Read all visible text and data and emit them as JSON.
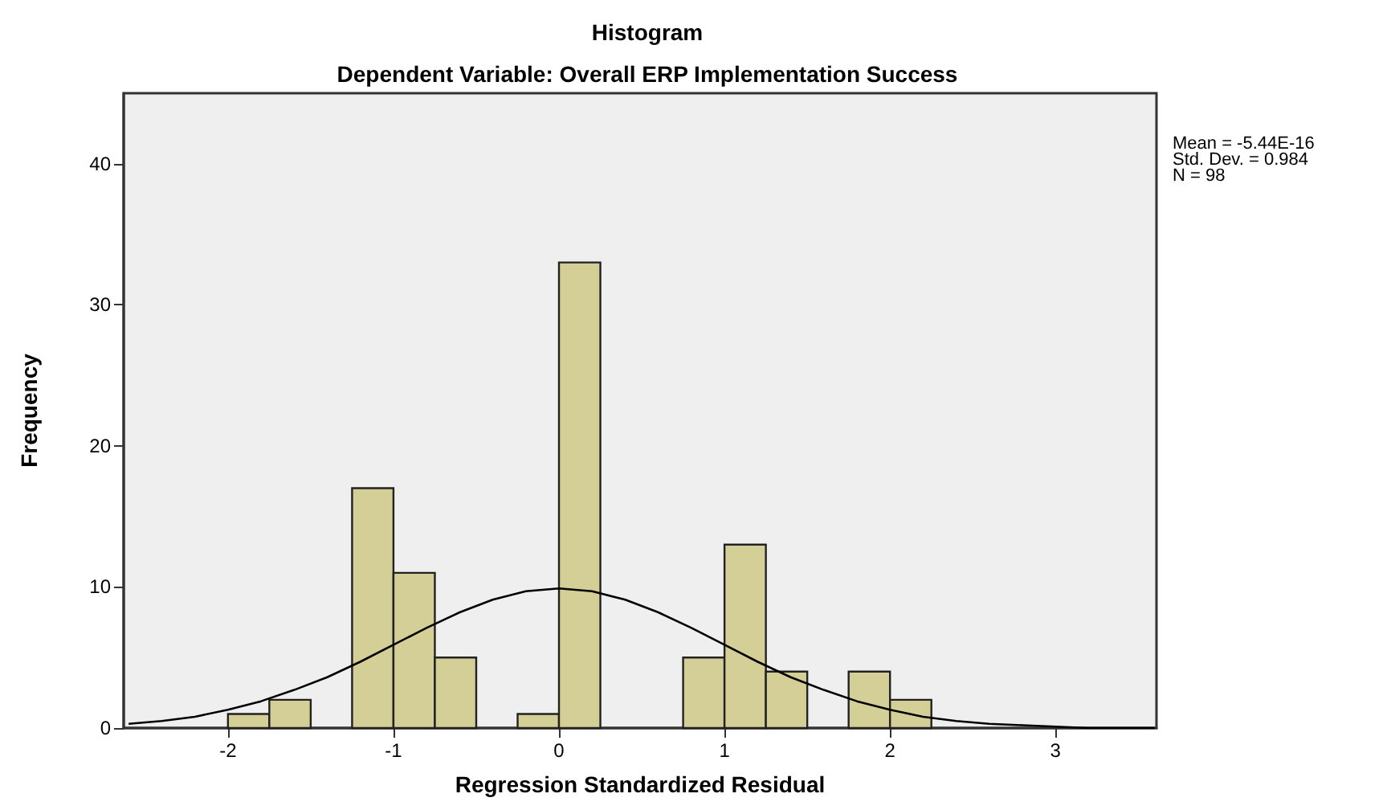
{
  "chart_data": {
    "type": "histogram",
    "title": "Histogram",
    "subtitle": "Dependent Variable: Overall ERP Implementation Success",
    "xlabel": "Regression Standardized Residual",
    "ylabel": "Frequency",
    "annotations": [
      "Mean = -5.44E-16",
      "Std. Dev. = 0.984",
      "N = 98"
    ],
    "bins": [
      -2,
      -1.75,
      -1.5,
      -1.25,
      -1,
      -0.75,
      -0.5,
      -0.25,
      0,
      0.25,
      0.5,
      0.75,
      1,
      1.25,
      1.5,
      1.75,
      2,
      2.25
    ],
    "values": [
      1,
      2,
      0,
      17,
      11,
      5,
      0,
      1,
      33,
      0,
      0,
      5,
      13,
      4,
      0,
      4,
      2
    ],
    "color": "#d3cf96",
    "series": [
      {
        "type": "line",
        "color": "#000000",
        "marker": "none",
        "x": [
          -2.6,
          -2.4,
          -2.2,
          -2.0,
          -1.8,
          -1.6,
          -1.4,
          -1.2,
          -1.0,
          -0.8,
          -0.6,
          -0.4,
          -0.2,
          0,
          0.2,
          0.4,
          0.6,
          0.8,
          1.0,
          1.2,
          1.4,
          1.6,
          1.8,
          2.0,
          2.2,
          2.4,
          2.6,
          2.8,
          3.0,
          3.2,
          3.4,
          3.6
        ],
        "values": [
          0.3,
          0.5,
          0.8,
          1.3,
          1.9,
          2.7,
          3.6,
          4.7,
          5.9,
          7.1,
          8.2,
          9.1,
          9.7,
          9.9,
          9.7,
          9.1,
          8.2,
          7.1,
          5.9,
          4.7,
          3.6,
          2.7,
          1.9,
          1.3,
          0.8,
          0.5,
          0.3,
          0.2,
          0.1,
          0.0,
          0.0,
          0.0
        ]
      }
    ],
    "xlim": [
      -2.63,
      3.61
    ],
    "xticks": [
      -2,
      -1,
      0,
      1,
      2,
      3
    ],
    "ylim": [
      0,
      45
    ],
    "yticks": [
      0,
      10,
      20,
      30,
      40
    ],
    "grid": false
  }
}
